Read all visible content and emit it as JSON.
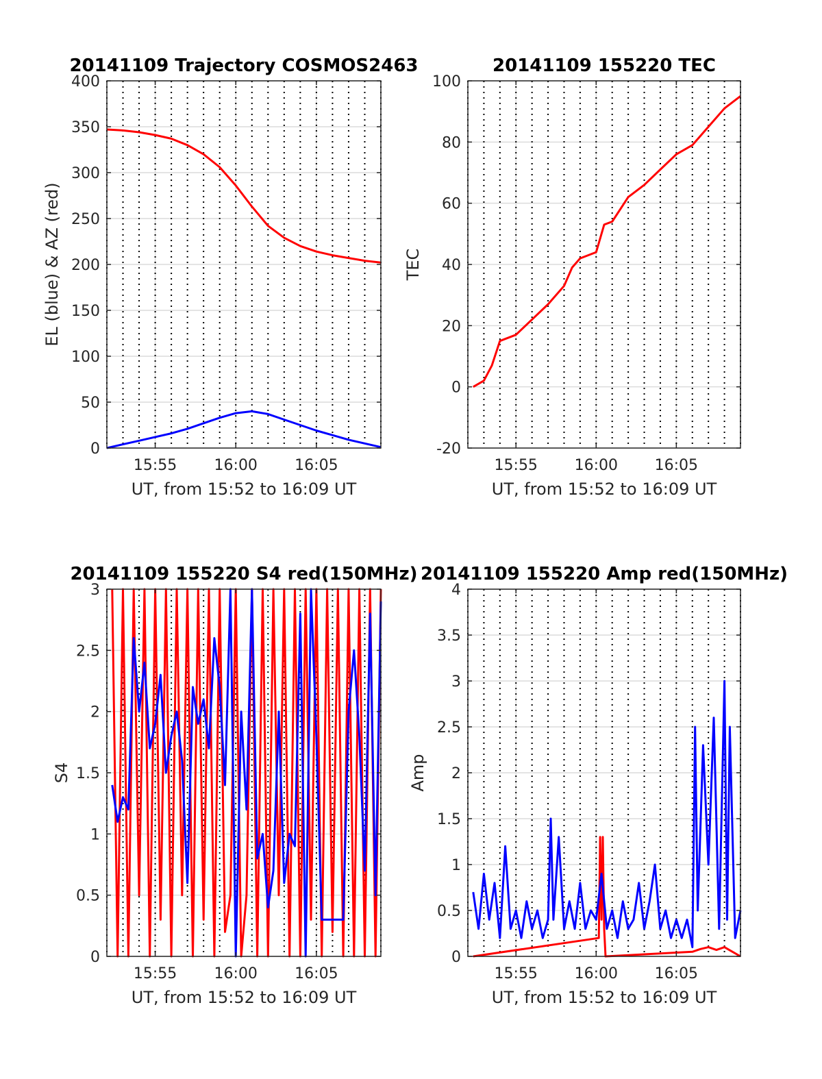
{
  "figure": {
    "colors": {
      "el": "#0000ff",
      "az": "#ff0000",
      "s4": "#ff0000",
      "amp": "#0000ff",
      "grid": "#dcdcdc",
      "axes": "#262626"
    }
  },
  "chart_data": [
    {
      "id": "trajectory",
      "type": "line",
      "title": "20141109 Trajectory COSMOS2463",
      "xlabel": "UT, from 15:52 to 16:09 UT",
      "ylabel": "EL (blue) & AZ (red)",
      "xlim": [
        "15:52",
        "16:09"
      ],
      "xticks": [
        "15:55",
        "16:00",
        "16:05"
      ],
      "ylim": [
        0,
        400
      ],
      "yticks": [
        "0",
        "50",
        "100",
        "150",
        "200",
        "250",
        "300",
        "350",
        "400"
      ],
      "grid": true,
      "series": [
        {
          "color": "#ff0000",
          "x": [
            "15:52",
            "15:53",
            "15:54",
            "15:55",
            "15:56",
            "15:57",
            "15:58",
            "15:59",
            "16:00",
            "16:01",
            "16:02",
            "16:03",
            "16:04",
            "16:05",
            "16:06",
            "16:07",
            "16:08",
            "16:09"
          ],
          "y": [
            347,
            346,
            344,
            341,
            337,
            330,
            320,
            306,
            286,
            263,
            242,
            229,
            220,
            214,
            210,
            207,
            204,
            202
          ]
        },
        {
          "color": "#0000ff",
          "x": [
            "15:52",
            "15:53",
            "15:54",
            "15:55",
            "15:56",
            "15:57",
            "15:58",
            "15:59",
            "16:00",
            "16:01",
            "16:02",
            "16:03",
            "16:04",
            "16:05",
            "16:06",
            "16:07",
            "16:08",
            "16:09"
          ],
          "y": [
            0,
            4,
            8,
            12,
            16,
            21,
            27,
            33,
            38,
            40,
            37,
            31,
            25,
            19,
            14,
            9,
            5,
            1
          ]
        }
      ]
    },
    {
      "id": "tec",
      "type": "line",
      "title": "20141109 155220 TEC",
      "xlabel": "UT, from 15:52 to 16:09 UT",
      "ylabel": "TEC",
      "xlim": [
        "15:52",
        "16:09"
      ],
      "xticks": [
        "15:55",
        "16:00",
        "16:05"
      ],
      "ylim": [
        -20,
        100
      ],
      "yticks": [
        "-20",
        "0",
        "20",
        "40",
        "60",
        "80",
        "100"
      ],
      "grid": true,
      "series": [
        {
          "color": "#ff0000",
          "x": [
            "15:52:20",
            "15:53",
            "15:53:30",
            "15:54",
            "15:55",
            "15:56",
            "15:57",
            "15:58",
            "15:58:30",
            "15:59",
            "16:00",
            "16:00:30",
            "16:01",
            "16:02",
            "16:03",
            "16:04",
            "16:05",
            "16:06",
            "16:07",
            "16:08",
            "16:09"
          ],
          "y": [
            0,
            2,
            7,
            15,
            17,
            22,
            27,
            33,
            39,
            42,
            44,
            53,
            54,
            62,
            66,
            71,
            76,
            79,
            85,
            91,
            95
          ]
        }
      ]
    },
    {
      "id": "s4",
      "type": "line",
      "title": "20141109 155220 S4 red(150MHz)",
      "xlabel": "UT, from 15:52 to 16:09 UT",
      "ylabel": "S4",
      "xlim": [
        "15:52",
        "16:09"
      ],
      "xticks": [
        "15:55",
        "16:00",
        "16:05"
      ],
      "ylim": [
        0,
        3
      ],
      "yticks": [
        "0",
        "0.5",
        "1",
        "1.5",
        "2",
        "2.5",
        "3"
      ],
      "grid": true,
      "series": [
        {
          "color": "#ff0000",
          "x": [
            "15:52:20",
            "15:52:40",
            "15:53",
            "15:53:20",
            "15:53:40",
            "15:54",
            "15:54:20",
            "15:54:40",
            "15:55",
            "15:55:20",
            "15:55:40",
            "15:56",
            "15:56:20",
            "15:56:40",
            "15:57",
            "15:57:20",
            "15:57:40",
            "15:58",
            "15:58:20",
            "15:58:40",
            "15:59",
            "15:59:20",
            "15:59:40",
            "16:00",
            "16:00:20",
            "16:00:40",
            "16:01",
            "16:01:20",
            "16:01:40",
            "16:02",
            "16:02:20",
            "16:02:40",
            "16:03",
            "16:03:20",
            "16:03:40",
            "16:04",
            "16:04:20",
            "16:04:40",
            "16:05",
            "16:05:20",
            "16:05:40",
            "16:06",
            "16:06:20",
            "16:06:40",
            "16:07",
            "16:07:20",
            "16:07:40",
            "16:08",
            "16:08:20",
            "16:08:40",
            "16:09"
          ],
          "y": [
            3,
            0,
            3,
            0,
            3,
            0.5,
            3,
            0,
            3,
            0.3,
            3,
            0,
            3,
            0.5,
            3,
            0,
            3,
            0.3,
            3,
            0,
            3,
            0.2,
            0.5,
            3,
            0,
            0.5,
            3,
            0,
            3,
            0,
            3,
            0.5,
            3,
            0,
            3,
            0,
            3,
            0.3,
            3,
            0,
            3,
            0.2,
            3,
            0,
            3,
            0,
            3,
            0,
            3,
            0,
            3
          ]
        },
        {
          "color": "#0000ff",
          "x": [
            "15:52:20",
            "15:52:40",
            "15:53",
            "15:53:20",
            "15:53:40",
            "15:54",
            "15:54:20",
            "15:54:40",
            "15:55",
            "15:55:20",
            "15:55:40",
            "15:56",
            "15:56:20",
            "15:56:40",
            "15:57",
            "15:57:20",
            "15:57:40",
            "15:58",
            "15:58:20",
            "15:58:40",
            "15:59",
            "15:59:20",
            "15:59:40",
            "16:00",
            "16:00:20",
            "16:00:40",
            "16:01",
            "16:01:20",
            "16:01:40",
            "16:02",
            "16:02:20",
            "16:02:40",
            "16:03",
            "16:03:20",
            "16:03:40",
            "16:04",
            "16:04:20",
            "16:04:40",
            "16:05",
            "16:05:20",
            "16:05:40",
            "16:06",
            "16:06:20",
            "16:06:40",
            "16:07",
            "16:07:20",
            "16:07:40",
            "16:08",
            "16:08:20",
            "16:08:40",
            "16:09"
          ],
          "y": [
            1.4,
            1.1,
            1.3,
            1.2,
            2.6,
            2.0,
            2.4,
            1.7,
            1.9,
            2.3,
            1.5,
            1.8,
            2.0,
            1.6,
            0.6,
            2.2,
            1.9,
            2.1,
            1.7,
            2.6,
            2.2,
            1.4,
            3.0,
            0.0,
            2.0,
            1.2,
            3.0,
            0.8,
            1.0,
            0.4,
            0.7,
            2.0,
            0.6,
            1.0,
            0.9,
            2.8,
            0.0,
            3.0,
            1.8,
            0.3,
            0.3,
            0.3,
            0.3,
            0.3,
            2.0,
            2.5,
            1.8,
            0.7,
            2.8,
            0.5,
            2.9
          ]
        }
      ]
    },
    {
      "id": "amp",
      "type": "line",
      "title": "20141109 155220 Amp red(150MHz)",
      "xlabel": "UT, from 15:52 to 16:09 UT",
      "ylabel": "Amp",
      "xlim": [
        "15:52",
        "16:09"
      ],
      "xticks": [
        "15:55",
        "16:00",
        "16:05"
      ],
      "ylim": [
        0,
        4
      ],
      "yticks": [
        "0",
        "0.5",
        "1",
        "1.5",
        "2",
        "2.5",
        "3",
        "3.5",
        "4"
      ],
      "grid": true,
      "series": [
        {
          "color": "#ff0000",
          "x": [
            "15:52:20",
            "16:00:10",
            "16:00:15",
            "16:00:20",
            "16:00:25",
            "16:00:30",
            "16:00:35",
            "16:06",
            "16:06:30",
            "16:07",
            "16:07:30",
            "16:08",
            "16:08:30",
            "16:09"
          ],
          "y": [
            0,
            0.2,
            1.3,
            0.4,
            1.3,
            0.3,
            0,
            0.05,
            0.08,
            0.1,
            0.07,
            0.1,
            0.05,
            0
          ]
        },
        {
          "color": "#0000ff",
          "x": [
            "15:52:20",
            "15:52:40",
            "15:53",
            "15:53:20",
            "15:53:40",
            "15:54",
            "15:54:20",
            "15:54:40",
            "15:55",
            "15:55:20",
            "15:55:40",
            "15:56",
            "15:56:20",
            "15:56:40",
            "15:57",
            "15:57:10",
            "15:57:20",
            "15:57:40",
            "15:58",
            "15:58:20",
            "15:58:40",
            "15:59",
            "15:59:20",
            "15:59:40",
            "16:00",
            "16:00:20",
            "16:00:40",
            "16:01",
            "16:01:20",
            "16:01:40",
            "16:02",
            "16:02:20",
            "16:02:40",
            "16:03",
            "16:03:20",
            "16:03:40",
            "16:04",
            "16:04:20",
            "16:04:40",
            "16:05",
            "16:05:20",
            "16:05:40",
            "16:06",
            "16:06:10",
            "16:06:20",
            "16:06:40",
            "16:07",
            "16:07:20",
            "16:07:40",
            "16:08",
            "16:08:10",
            "16:08:20",
            "16:08:40",
            "16:09"
          ],
          "y": [
            0.7,
            0.3,
            0.9,
            0.4,
            0.8,
            0.2,
            1.2,
            0.3,
            0.5,
            0.2,
            0.6,
            0.3,
            0.5,
            0.2,
            0.4,
            1.5,
            0.4,
            1.3,
            0.3,
            0.6,
            0.3,
            0.8,
            0.3,
            0.5,
            0.4,
            0.9,
            0.3,
            0.5,
            0.2,
            0.6,
            0.3,
            0.4,
            0.8,
            0.3,
            0.6,
            1.0,
            0.3,
            0.5,
            0.2,
            0.4,
            0.2,
            0.4,
            0.1,
            2.5,
            0.5,
            2.3,
            1.0,
            2.6,
            0.3,
            3.0,
            0.4,
            2.5,
            0.2,
            0.5
          ]
        }
      ]
    }
  ]
}
